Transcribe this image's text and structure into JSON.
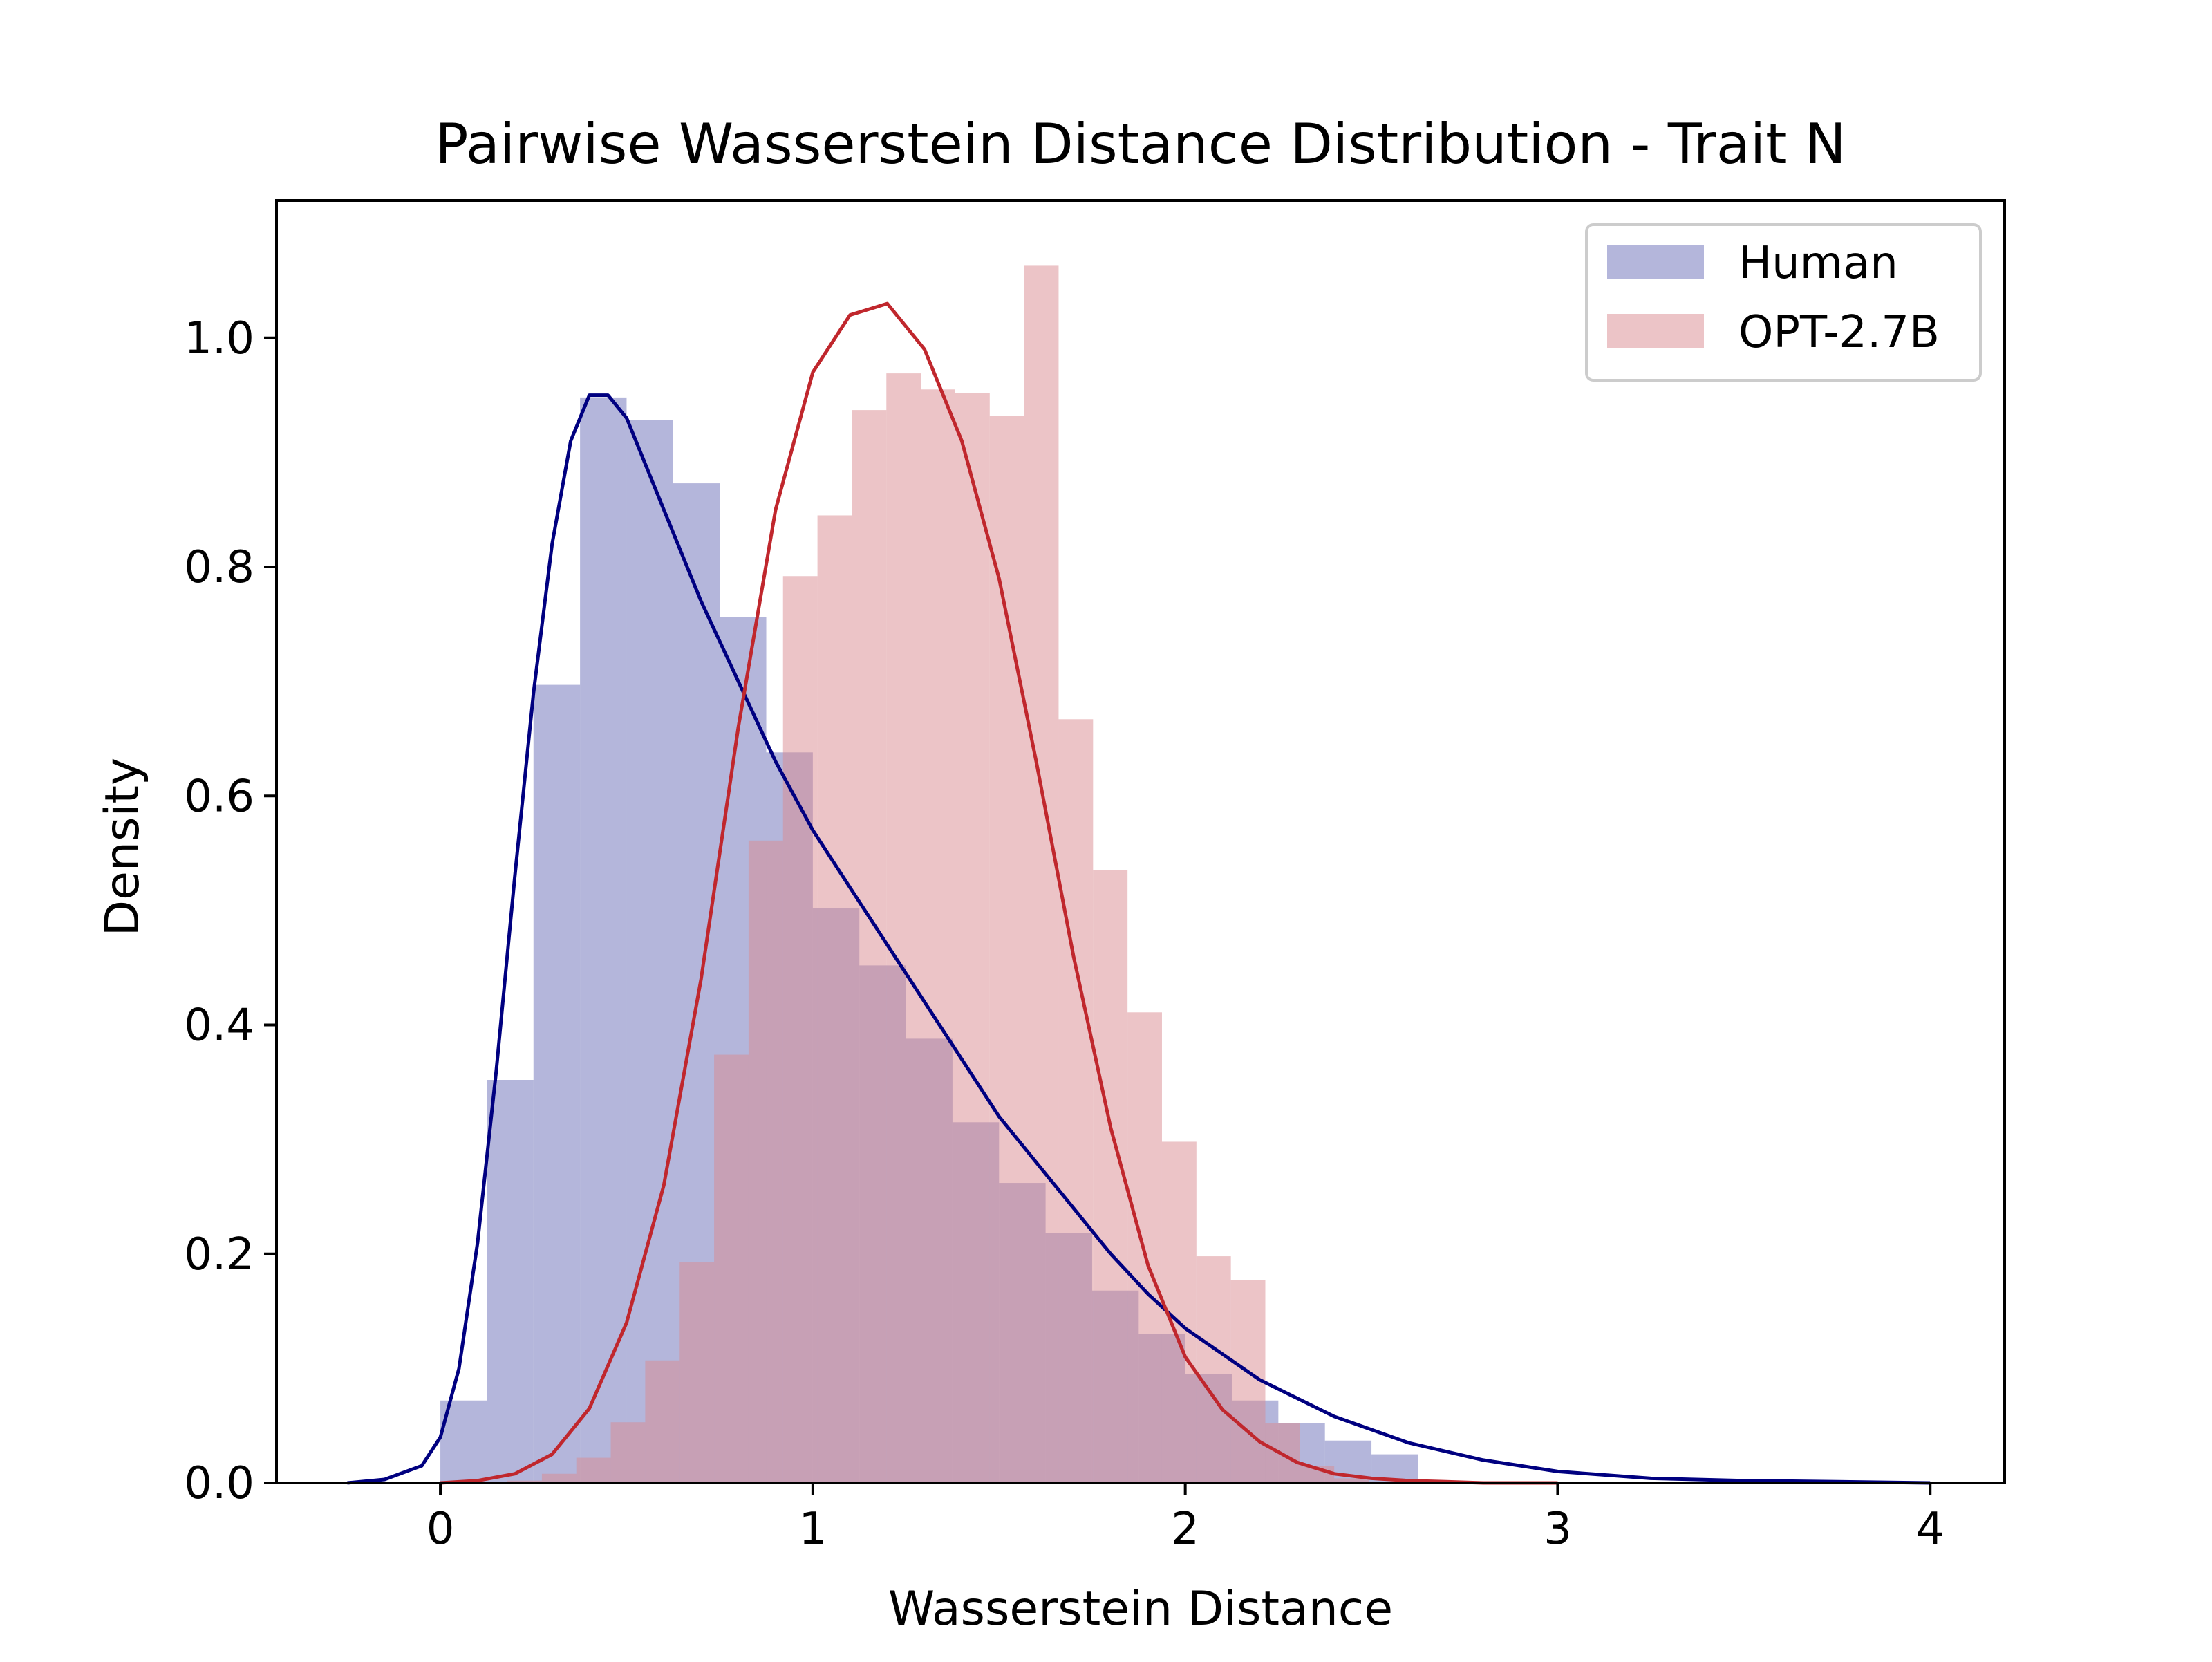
{
  "chart_data": {
    "type": "bar",
    "title": "Pairwise Wasserstein Distance Distribution - Trait N",
    "xlabel": "Wasserstein Distance",
    "ylabel": "Density",
    "xlim": [
      -0.44,
      4.2
    ],
    "ylim": [
      0.0,
      1.12
    ],
    "xticks": [
      0,
      1,
      2,
      3,
      4
    ],
    "xtick_labels": [
      "0",
      "1",
      "2",
      "3",
      "4"
    ],
    "yticks": [
      0.0,
      0.2,
      0.4,
      0.6,
      0.8,
      1.0
    ],
    "ytick_labels": [
      "0.0",
      "0.2",
      "0.4",
      "0.6",
      "0.8",
      "1.0"
    ],
    "grid": false,
    "legend_position": "top-right",
    "series": [
      {
        "name": "Human",
        "kind": "histogram",
        "color": "#6a6db8",
        "opacity": 0.5,
        "bin_start": 0.0,
        "bin_width": 0.125,
        "values": [
          0.072,
          0.352,
          0.697,
          0.948,
          0.928,
          0.873,
          0.756,
          0.638,
          0.502,
          0.452,
          0.388,
          0.315,
          0.262,
          0.218,
          0.168,
          0.13,
          0.095,
          0.072,
          0.052,
          0.037,
          0.025
        ],
        "kde": {
          "color": "#000080",
          "x": [
            -0.25,
            -0.15,
            -0.05,
            0.0,
            0.05,
            0.1,
            0.15,
            0.2,
            0.25,
            0.3,
            0.35,
            0.4,
            0.45,
            0.5,
            0.55,
            0.6,
            0.65,
            0.7,
            0.8,
            0.9,
            1.0,
            1.1,
            1.2,
            1.3,
            1.4,
            1.5,
            1.6,
            1.7,
            1.8,
            1.9,
            2.0,
            2.2,
            2.4,
            2.6,
            2.8,
            3.0,
            3.25,
            3.5,
            3.75,
            4.0
          ],
          "y": [
            0.0,
            0.003,
            0.015,
            0.04,
            0.1,
            0.21,
            0.36,
            0.53,
            0.69,
            0.82,
            0.91,
            0.95,
            0.95,
            0.93,
            0.89,
            0.85,
            0.81,
            0.77,
            0.7,
            0.63,
            0.57,
            0.52,
            0.47,
            0.42,
            0.37,
            0.32,
            0.28,
            0.24,
            0.2,
            0.165,
            0.135,
            0.09,
            0.058,
            0.035,
            0.02,
            0.01,
            0.004,
            0.002,
            0.001,
            0.0
          ]
        }
      },
      {
        "name": "OPT-2.7B",
        "kind": "histogram",
        "color": "#d98a8f",
        "opacity": 0.5,
        "bin_start": 0.18,
        "bin_width": 0.0925,
        "values": [
          0.002,
          0.008,
          0.022,
          0.053,
          0.107,
          0.193,
          0.374,
          0.561,
          0.792,
          0.845,
          0.937,
          0.969,
          0.955,
          0.952,
          0.932,
          1.063,
          0.667,
          0.535,
          0.411,
          0.298,
          0.198,
          0.177,
          0.052,
          0.015,
          0.004
        ],
        "kde": {
          "color": "#c0272d",
          "x": [
            0.0,
            0.1,
            0.2,
            0.3,
            0.4,
            0.5,
            0.6,
            0.7,
            0.8,
            0.9,
            1.0,
            1.1,
            1.2,
            1.3,
            1.4,
            1.5,
            1.6,
            1.7,
            1.8,
            1.9,
            2.0,
            2.1,
            2.2,
            2.3,
            2.4,
            2.5,
            2.6,
            2.7,
            2.8,
            3.0
          ],
          "y": [
            0.0,
            0.002,
            0.008,
            0.025,
            0.065,
            0.14,
            0.26,
            0.44,
            0.66,
            0.85,
            0.97,
            1.02,
            1.03,
            0.99,
            0.91,
            0.79,
            0.63,
            0.46,
            0.31,
            0.19,
            0.11,
            0.064,
            0.036,
            0.018,
            0.008,
            0.004,
            0.002,
            0.001,
            0.0,
            0.0
          ]
        }
      }
    ]
  }
}
